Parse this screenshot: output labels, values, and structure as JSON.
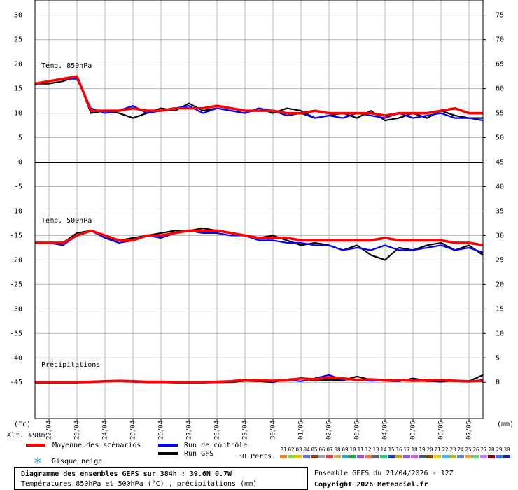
{
  "chart_data": {
    "type": "line",
    "title": "Diagramme des ensembles GEFS sur 384h : 39.6N 0.7W",
    "subtitle": "Températures 850hPa et 500hPa (°C) , précipitations (mm)",
    "run_label": "Ensemble GEFS du 21/04/2026 - 12Z",
    "copyright": "Copyright 2026 Meteociel.fr",
    "y_unit": "(°c)",
    "y2_unit": "(mm)",
    "altitude": "Alt. 498m",
    "panel_labels": [
      "Temp. 850hPa",
      "Temp. 500hPa",
      "Précipitations"
    ],
    "snow_label": "Risque neige",
    "perts_label": "30 Perts.",
    "grid": true,
    "xlim": [
      0,
      384
    ],
    "xticks": [
      {
        "value": 12,
        "label": "22/04"
      },
      {
        "value": 36,
        "label": "23/04"
      },
      {
        "value": 60,
        "label": "24/04"
      },
      {
        "value": 84,
        "label": "25/04"
      },
      {
        "value": 108,
        "label": "26/04"
      },
      {
        "value": 132,
        "label": "27/04"
      },
      {
        "value": 156,
        "label": "28/04"
      },
      {
        "value": 180,
        "label": "29/04"
      },
      {
        "value": 204,
        "label": "30/04"
      },
      {
        "value": 228,
        "label": "01/05"
      },
      {
        "value": 252,
        "label": "02/05"
      },
      {
        "value": 276,
        "label": "03/05"
      },
      {
        "value": 300,
        "label": "04/05"
      },
      {
        "value": 324,
        "label": "05/05"
      },
      {
        "value": 348,
        "label": "06/05"
      },
      {
        "value": 372,
        "label": "07/05"
      }
    ],
    "ylim": [
      -52.4,
      33.1
    ],
    "yticks": [
      30,
      25,
      20,
      15,
      10,
      5,
      0,
      -5,
      -10,
      -15,
      -20,
      -25,
      -30,
      -35,
      -40,
      -45
    ],
    "y2lim": [
      -7.4,
      78.1
    ],
    "y2ticks": [
      75,
      70,
      65,
      60,
      55,
      50,
      45,
      40,
      35,
      30,
      25,
      20,
      15,
      10,
      5,
      0
    ],
    "x": [
      0,
      12,
      24,
      36,
      48,
      60,
      72,
      84,
      96,
      108,
      120,
      132,
      144,
      156,
      168,
      180,
      192,
      204,
      216,
      228,
      240,
      252,
      264,
      276,
      288,
      300,
      312,
      324,
      336,
      348,
      360,
      372,
      384
    ],
    "series": [
      {
        "name": "Moyenne des scénarios",
        "color": "#ff0000",
        "t850": [
          16,
          16.5,
          17,
          17.5,
          10.5,
          10.5,
          10.5,
          11,
          10.5,
          10.5,
          11,
          11,
          11,
          11.5,
          11,
          10.5,
          10.5,
          10.5,
          10,
          10,
          10.5,
          10,
          10,
          10,
          10,
          9.5,
          10,
          10,
          10,
          10.5,
          11,
          10,
          10
        ],
        "t500": [
          -16.5,
          -16.5,
          -16.5,
          -15,
          -14,
          -15,
          -16,
          -16,
          -15,
          -15,
          -14.5,
          -14,
          -14,
          -14,
          -14.5,
          -15,
          -15.5,
          -15.5,
          -15.5,
          -16,
          -16,
          -16,
          -16,
          -16,
          -16,
          -15.5,
          -16,
          -16,
          -16,
          -16,
          -16.5,
          -16.5,
          -17
        ],
        "precip": [
          0,
          0,
          0,
          0,
          0.1,
          0.2,
          0.3,
          0.2,
          0.1,
          0.1,
          0,
          0,
          0,
          0.1,
          0.2,
          0.5,
          0.4,
          0.3,
          0.4,
          0.8,
          0.6,
          1,
          0.8,
          0.5,
          0.6,
          0.4,
          0.5,
          0.3,
          0.4,
          0.5,
          0.3,
          0.2,
          0.3
        ]
      },
      {
        "name": "Run de contrôle",
        "color": "#0000ff",
        "t850": [
          16,
          16.5,
          17,
          17,
          11,
          10,
          10.5,
          11.5,
          10,
          10.5,
          11,
          11.5,
          10,
          11,
          10.5,
          10,
          11,
          10.5,
          9.5,
          10,
          9,
          9.5,
          9,
          10,
          9.5,
          9,
          10,
          9,
          9.5,
          10,
          9,
          9,
          8.5
        ],
        "t500": [
          -16.5,
          -16.5,
          -17,
          -15,
          -14,
          -15.5,
          -16.5,
          -16,
          -15,
          -15.5,
          -14.5,
          -14,
          -14.5,
          -14.5,
          -15,
          -15,
          -16,
          -16,
          -16.5,
          -16.5,
          -17,
          -17,
          -18,
          -17.5,
          -18,
          -17,
          -18,
          -18,
          -17.5,
          -17,
          -18,
          -17.5,
          -18.5
        ],
        "precip": [
          0,
          0,
          0,
          0,
          0,
          0.2,
          0.3,
          0.1,
          0,
          0,
          0,
          0,
          0,
          0,
          0.2,
          0.6,
          0.3,
          0.1,
          0.5,
          0.2,
          0.8,
          1.5,
          0.5,
          0.6,
          0.3,
          0.4,
          0.3,
          0.5,
          0.2,
          0.3,
          0.2,
          0.1,
          0.5
        ]
      },
      {
        "name": "Run GFS",
        "color": "#000000",
        "t850": [
          16,
          16,
          16.5,
          17.5,
          10,
          10.5,
          10,
          9,
          10,
          11,
          10.5,
          12,
          10.5,
          11,
          10.5,
          10,
          11,
          10,
          11,
          10.5,
          9,
          9.5,
          10,
          9,
          10.5,
          8.5,
          9,
          10,
          9,
          10.5,
          9.5,
          9,
          9
        ],
        "t500": [
          -16.5,
          -16.5,
          -16.5,
          -14.5,
          -14,
          -15.5,
          -16,
          -15.5,
          -15,
          -14.5,
          -14,
          -14,
          -13.5,
          -14,
          -14.5,
          -15,
          -15.5,
          -15,
          -16,
          -17,
          -16.5,
          -17,
          -18,
          -17,
          -19,
          -20,
          -17.5,
          -18,
          -17,
          -16.5,
          -18,
          -17,
          -19
        ],
        "precip": [
          0,
          0,
          0,
          0,
          0,
          0.3,
          0.2,
          0.1,
          0,
          0,
          0,
          0,
          0,
          0,
          0,
          0.3,
          0.2,
          0,
          0.6,
          0.8,
          0.3,
          0.5,
          0.4,
          1.2,
          0.5,
          0.3,
          0.2,
          0.8,
          0.3,
          0.1,
          0.4,
          0.2,
          1.5
        ]
      }
    ],
    "perturbations": [
      {
        "name": "01",
        "color": "#e8832a"
      },
      {
        "name": "02",
        "color": "#8fc94a"
      },
      {
        "name": "03",
        "color": "#e8c020"
      },
      {
        "name": "04",
        "color": "#5a6fd0"
      },
      {
        "name": "05",
        "color": "#7a4010"
      },
      {
        "name": "06",
        "color": "#a0a0a0"
      },
      {
        "name": "07",
        "color": "#d04040"
      },
      {
        "name": "08",
        "color": "#d0b060"
      },
      {
        "name": "09",
        "color": "#40a0c0"
      },
      {
        "name": "10",
        "color": "#20a040"
      },
      {
        "name": "11",
        "color": "#a050c0"
      },
      {
        "name": "12",
        "color": "#e07050"
      },
      {
        "name": "13",
        "color": "#606060"
      },
      {
        "name": "14",
        "color": "#30c080"
      },
      {
        "name": "15",
        "color": "#2040a0"
      },
      {
        "name": "16",
        "color": "#c0a020"
      },
      {
        "name": "17",
        "color": "#9060e0"
      },
      {
        "name": "18",
        "color": "#d060d0"
      },
      {
        "name": "19",
        "color": "#406080"
      },
      {
        "name": "20",
        "color": "#804000"
      },
      {
        "name": "21",
        "color": "#e0d020"
      },
      {
        "name": "22",
        "color": "#50b0e0"
      },
      {
        "name": "23",
        "color": "#b0b040"
      },
      {
        "name": "24",
        "color": "#6080c0"
      },
      {
        "name": "25",
        "color": "#f0a040"
      },
      {
        "name": "26",
        "color": "#70d070"
      },
      {
        "name": "27",
        "color": "#c080ff"
      },
      {
        "name": "28",
        "color": "#800000"
      },
      {
        "name": "29",
        "color": "#4070f0"
      },
      {
        "name": "30",
        "color": "#2020a0"
      }
    ]
  }
}
